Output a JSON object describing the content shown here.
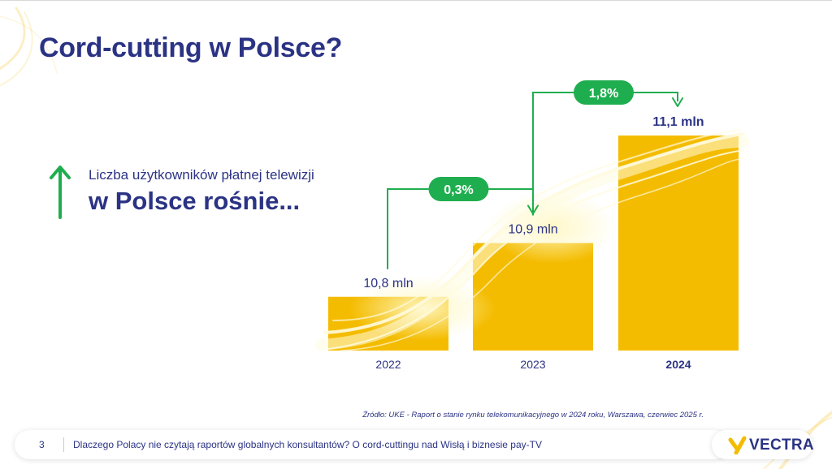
{
  "slide": {
    "title": "Cord-cutting w Polsce?",
    "subtitle_small": "Liczba użytkowników płatnej telewizji",
    "subtitle_big": "w Polsce rośnie...",
    "source": "Źródło: UKE - Raport o stanie rynku telekomunikacyjnego w 2024 roku, Warszawa, czerwiec 2025 r."
  },
  "footer": {
    "page_number": "3",
    "text": "Dlaczego Polacy nie czytają raportów globalnych konsultantów? O cord-cuttingu nad Wisłą i biznesie pay-TV",
    "logo_text": "VECTRA"
  },
  "colors": {
    "title": "#2b3384",
    "bar": "#f4bc00",
    "growth": "#1fae4f",
    "logo_mark": "#f4bc00"
  },
  "chart_data": {
    "type": "bar",
    "categories": [
      "2022",
      "2023",
      "2024"
    ],
    "values": [
      10.8,
      10.9,
      11.1
    ],
    "value_labels": [
      "10,8 mln",
      "10,9 mln",
      "11,1 mln"
    ],
    "highlight_category": "2024",
    "growth_badges": [
      {
        "from": "2022",
        "to": "2023",
        "label": "0,3%"
      },
      {
        "from": "2023",
        "to": "2024",
        "label": "1,8%"
      }
    ],
    "ylim": [
      10.7,
      11.1
    ],
    "grid": false,
    "legend": "none"
  }
}
